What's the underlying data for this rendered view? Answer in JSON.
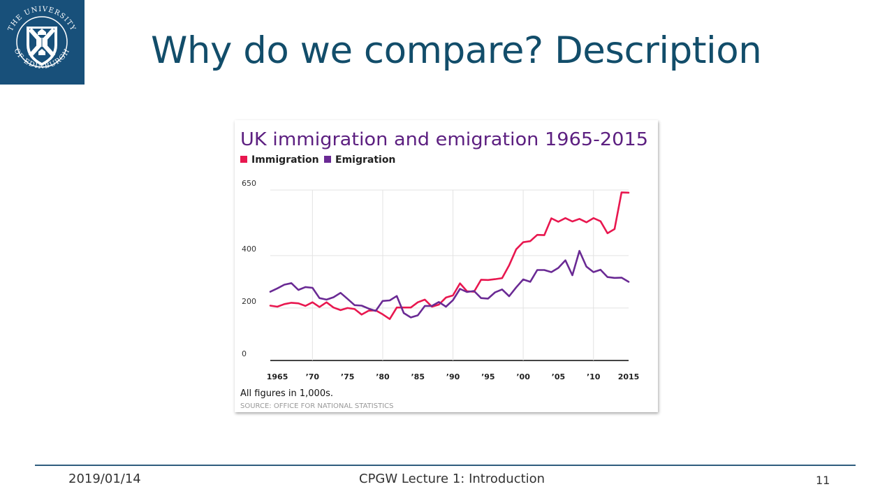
{
  "slide": {
    "title": "Why do we compare? Description",
    "logo_text": "THE UNIVERSITY OF EDINBURGH",
    "footer": {
      "date": "2019/01/14",
      "course": "CPGW Lecture 1: Introduction",
      "page": "11"
    }
  },
  "colors": {
    "immigration": "#e8174f",
    "emigration": "#6a2a94",
    "title": "#5c1f80",
    "slide_title": "#124d6a",
    "logo_bg": "#18507a"
  },
  "chart_data": {
    "type": "line",
    "title": "UK immigration and emigration 1965-2015",
    "legend_position": "top-left",
    "x": [
      1964,
      1965,
      1966,
      1967,
      1968,
      1969,
      1970,
      1971,
      1972,
      1973,
      1974,
      1975,
      1976,
      1977,
      1978,
      1979,
      1980,
      1981,
      1982,
      1983,
      1984,
      1985,
      1986,
      1987,
      1988,
      1989,
      1990,
      1991,
      1992,
      1993,
      1994,
      1995,
      1996,
      1997,
      1998,
      1999,
      2000,
      2001,
      2002,
      2003,
      2004,
      2005,
      2006,
      2007,
      2008,
      2009,
      2010,
      2011,
      2012,
      2013,
      2014,
      2015
    ],
    "series": [
      {
        "name": "Immigration",
        "color": "#e8174f",
        "values": [
          209,
          205,
          215,
          220,
          218,
          208,
          222,
          204,
          222,
          202,
          192,
          200,
          196,
          175,
          190,
          191,
          176,
          158,
          202,
          202,
          202,
          222,
          232,
          205,
          213,
          240,
          248,
          294,
          264,
          262,
          308,
          307,
          310,
          314,
          363,
          424,
          451,
          455,
          479,
          478,
          542,
          529,
          543,
          530,
          540,
          527,
          543,
          531,
          485,
          501,
          641,
          640
        ]
      },
      {
        "name": "Emigration",
        "color": "#6a2a94",
        "values": [
          262,
          275,
          289,
          295,
          269,
          280,
          277,
          238,
          232,
          241,
          258,
          235,
          211,
          209,
          198,
          189,
          227,
          229,
          246,
          181,
          164,
          172,
          208,
          208,
          223,
          205,
          230,
          273,
          261,
          265,
          238,
          236,
          260,
          271,
          245,
          279,
          309,
          300,
          345,
          345,
          337,
          353,
          382,
          325,
          418,
          358,
          337,
          346,
          318,
          315,
          316,
          300
        ]
      }
    ],
    "y_ticks": [
      0,
      200,
      400,
      650
    ],
    "x_tick_labels": [
      "1965",
      "’70",
      "’75",
      "’80",
      "’85",
      "’90",
      "’95",
      "’00",
      "’05",
      "’10",
      "2015"
    ],
    "x_tick_values": [
      1965,
      1970,
      1975,
      1980,
      1985,
      1990,
      1995,
      2000,
      2005,
      2010,
      2015
    ],
    "vertical_grid_at": [
      1970,
      1980,
      1990,
      2000,
      2010
    ],
    "ylim": [
      0,
      650
    ],
    "xlim": [
      1964,
      2015
    ],
    "note": "All figures in 1,000s.",
    "source": "SOURCE: OFFICE FOR NATIONAL STATISTICS"
  }
}
